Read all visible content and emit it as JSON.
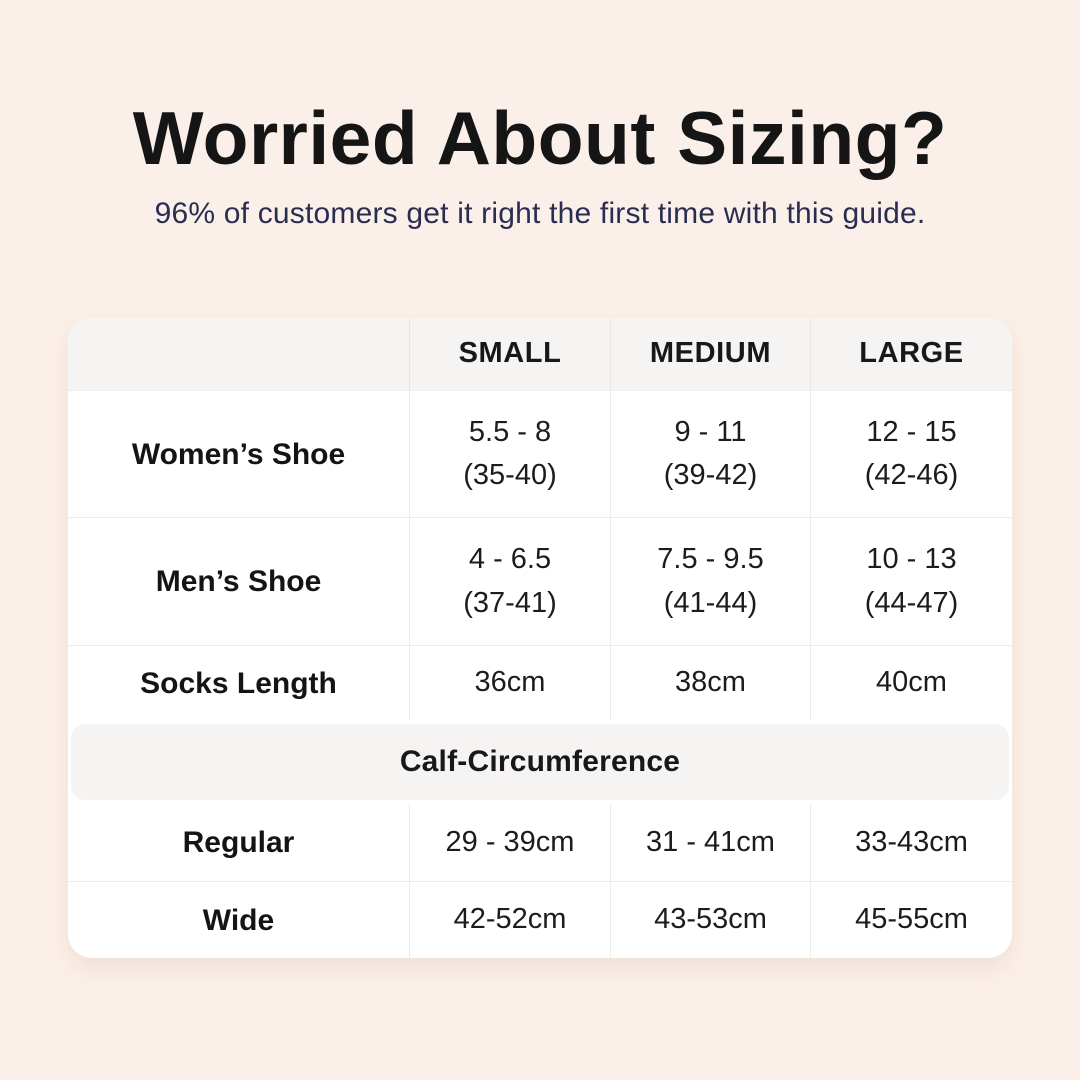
{
  "header": {
    "title": "Worried About Sizing?",
    "subtitle": "96% of customers get it right the first time with this guide."
  },
  "table": {
    "columns": {
      "small": "SMALL",
      "medium": "MEDIUM",
      "large": "LARGE"
    },
    "womens_shoe": {
      "label": "Women’s Shoe",
      "small_line1": "5.5 - 8",
      "small_line2": "(35-40)",
      "medium_line1": "9 - 11",
      "medium_line2": "(39-42)",
      "large_line1": "12 - 15",
      "large_line2": "(42-46)"
    },
    "mens_shoe": {
      "label": "Men’s Shoe",
      "small_line1": "4 - 6.5",
      "small_line2": "(37-41)",
      "medium_line1": "7.5 - 9.5",
      "medium_line2": "(41-44)",
      "large_line1": "10 - 13",
      "large_line2": "(44-47)"
    },
    "socks_length": {
      "label": "Socks Length",
      "small": "36cm",
      "medium": "38cm",
      "large": "40cm"
    },
    "calf_section": {
      "title": "Calf-Circumference"
    },
    "regular": {
      "label": "Regular",
      "small": "29 - 39cm",
      "medium": "31 - 41cm",
      "large": "33-43cm"
    },
    "wide": {
      "label": "Wide",
      "small": "42-52cm",
      "medium": "43-53cm",
      "large": "45-55cm"
    }
  },
  "colors": {
    "page_background": "#FBF0E9",
    "card_background": "#FFFFFF",
    "band_background": "#F5F4F2",
    "divider": "#ECECEA",
    "title_text": "#151515",
    "subtitle_text": "#2A2D4F",
    "table_text": "#1C1C1C"
  }
}
